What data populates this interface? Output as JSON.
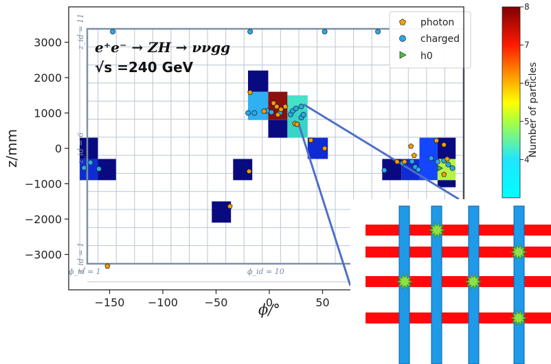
{
  "chart_data": {
    "type": "heatmap",
    "xlabel": "ϕ/°",
    "ylabel": "z/mm",
    "xlim": [
      -190,
      175
    ],
    "ylim": [
      -3900,
      3400
    ],
    "x_ticks": [
      -150,
      -100,
      -50,
      0,
      50
    ],
    "x_tick_labels": [
      "−150",
      "−100",
      "−50",
      "0",
      "50"
    ],
    "y_ticks": [
      -3000,
      -2000,
      -1000,
      0,
      1000,
      2000,
      3000
    ],
    "y_tick_labels": [
      "−3000",
      "−2000",
      "−1000",
      "0",
      "1000",
      "2000",
      "3000"
    ],
    "annotation_process": "e⁺e⁻ → ZH → ννgg",
    "annotation_energy": "√s =240 GeV",
    "cell_id_labels": [
      "z_id = 11",
      "z_id = 6",
      "z_id = 1",
      "ϕ_id = 1",
      "ϕ_id = 10"
    ],
    "colorbar": {
      "label": "Number of particles",
      "min": 3,
      "max": 8,
      "ticks": [
        "4",
        "5",
        "6",
        "7",
        "8"
      ]
    },
    "legend": {
      "position": "top-right",
      "entries": [
        "photon",
        "charged",
        "h0"
      ],
      "colors": [
        "#f5a000",
        "#29a9e8",
        "#49c23a"
      ]
    },
    "cells": [
      {
        "phi0": -20,
        "phi1": -1,
        "z0": 1600,
        "z1": 2200,
        "count": 3
      },
      {
        "phi0": -20,
        "phi1": -1,
        "z0": 800,
        "z1": 1600,
        "count": 4
      },
      {
        "phi0": -1,
        "phi1": 17,
        "z0": 800,
        "z1": 1600,
        "count": 8
      },
      {
        "phi0": -1,
        "phi1": 17,
        "z0": 300,
        "z1": 800,
        "count": 3
      },
      {
        "phi0": 17,
        "phi1": 36,
        "z0": 1100,
        "z1": 1500,
        "count": 4.5
      },
      {
        "phi0": 17,
        "phi1": 36,
        "z0": 300,
        "z1": 1100,
        "count": 4.3
      },
      {
        "phi0": 36,
        "phi1": 55,
        "z0": -300,
        "z1": 300,
        "count": 3.1
      },
      {
        "phi0": -178,
        "phi1": -161,
        "z0": -300,
        "z1": 300,
        "count": 3
      },
      {
        "phi0": -178,
        "phi1": -161,
        "z0": -900,
        "z1": -300,
        "count": 3.1
      },
      {
        "phi0": -161,
        "phi1": -144,
        "z0": -900,
        "z1": -300,
        "count": 3
      },
      {
        "phi0": -34,
        "phi1": -16,
        "z0": -900,
        "z1": -300,
        "count": 3
      },
      {
        "phi0": -54,
        "phi1": -36,
        "z0": -2100,
        "z1": -1500,
        "count": 3
      },
      {
        "phi0": 106,
        "phi1": 124,
        "z0": -900,
        "z1": -300,
        "count": 3
      },
      {
        "phi0": 124,
        "phi1": 141,
        "z0": -900,
        "z1": -300,
        "count": 3.1
      },
      {
        "phi0": 141,
        "phi1": 158,
        "z0": -300,
        "z1": 300,
        "count": 3.2
      },
      {
        "phi0": 141,
        "phi1": 158,
        "z0": -900,
        "z1": -300,
        "count": 3.2
      },
      {
        "phi0": 158,
        "phi1": 175,
        "z0": -300,
        "z1": 300,
        "count": 3
      },
      {
        "phi0": 158,
        "phi1": 175,
        "z0": -900,
        "z1": -300,
        "count": 5
      },
      {
        "phi0": 158,
        "phi1": 175,
        "z0": -1100,
        "z1": -900,
        "count": 3
      }
    ],
    "photons": [
      [
        -18,
        1580
      ],
      [
        -5,
        1050
      ],
      [
        4,
        1280
      ],
      [
        7,
        1180
      ],
      [
        8,
        950
      ],
      [
        11,
        1100
      ],
      [
        15,
        1180
      ],
      [
        24,
        700
      ],
      [
        26,
        680
      ],
      [
        39,
        230
      ],
      [
        52,
        0
      ],
      [
        -19,
        -650
      ],
      [
        -37,
        -1640
      ],
      [
        -152,
        -3330
      ],
      [
        133,
        60
      ],
      [
        136,
        -200
      ],
      [
        157,
        220
      ],
      [
        164,
        100
      ],
      [
        164,
        -740
      ],
      [
        120,
        -380
      ],
      [
        127,
        -380
      ],
      [
        167,
        -300
      ]
    ],
    "charged": [
      [
        -147,
        3300
      ],
      [
        -18,
        3300
      ],
      [
        52,
        3300
      ],
      [
        102,
        3300
      ],
      [
        -20,
        1000
      ],
      [
        -14,
        1000
      ],
      [
        -2,
        1060
      ],
      [
        2,
        1020
      ],
      [
        10,
        1000
      ],
      [
        20,
        960
      ],
      [
        22,
        1060
      ],
      [
        25,
        1130
      ],
      [
        30,
        1180
      ],
      [
        30,
        870
      ],
      [
        32,
        950
      ],
      [
        -174,
        -550
      ],
      [
        -168,
        -400
      ],
      [
        -160,
        -580
      ],
      [
        108,
        -620
      ],
      [
        125,
        -420
      ],
      [
        134,
        -370
      ],
      [
        137,
        -530
      ],
      [
        140,
        -600
      ],
      [
        152,
        -280
      ],
      [
        158,
        -380
      ],
      [
        164,
        -350
      ],
      [
        168,
        -460
      ],
      [
        172,
        -560
      ]
    ],
    "h0": [
      [
        160,
        -560
      ]
    ]
  }
}
